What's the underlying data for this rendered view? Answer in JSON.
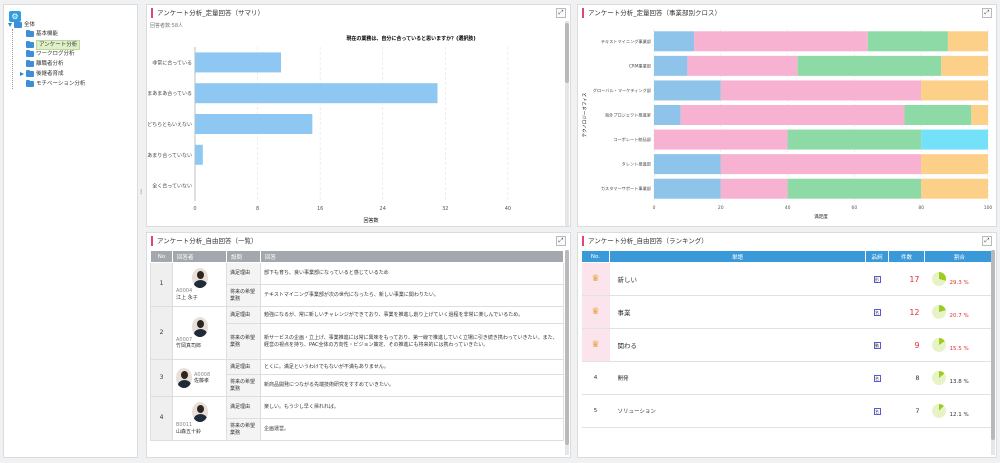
{
  "sidebar": {
    "top_button_icon": "gear-icon",
    "root": "全体",
    "items": [
      "基本機能",
      "アンケート分析",
      "ワークログ分析",
      "離職者分析",
      "後継者育成",
      "モチベーション分析"
    ],
    "selected": "アンケート分析"
  },
  "panel_summary": {
    "title": "アンケート分析_定量回答（サマリ）",
    "respondents": "回答者数:58人",
    "chart_title": "現在の業務は、自分に合っていると思いますか？(選択肢)",
    "xlabel": "回答数"
  },
  "panel_cross": {
    "title": "アンケート分析_定量回答（事業部別クロス）",
    "xlabel": "満足度",
    "ylabel": "テクノロジーオフィス"
  },
  "panel_free": {
    "title": "アンケート分析_自由回答（一覧）",
    "headers": [
      "No",
      "回答者",
      "設問",
      "回答"
    ],
    "rows": [
      {
        "no": "1",
        "id": "A0004",
        "name": "江上 永子",
        "q1": "満足理由",
        "a1": "部下も育ち、良い事業部になっていると感じているため",
        "q2": "将来の希望業務",
        "a2": "テキストマイニング事業部が次の世代になったら、新しい事業に関わりたい。"
      },
      {
        "no": "2",
        "id": "A0007",
        "name": "竹岡真司郎",
        "q1": "満足理由",
        "a1": "勉強になるが、常に新しいチャレンジができており、事業を推進し創り上げていく過程を非常に楽しんでいるため。",
        "q2": "将来の希望業務",
        "a2": "新サービスの企画・立上げ、事業推進には常に興味をもっており、第一線で推進していく立場に引き続き携わっていきたい。また、経営の視点を持ち、PAC全体の方向性・ビジョン策定、その推進にも将来的には携わっていきたい。"
      },
      {
        "no": "3",
        "id": "A0008",
        "name": "佐藤孝",
        "q1": "満足理由",
        "a1": "とくに。満足というわけでもないが不満もありません。",
        "q2": "将来の希望業務",
        "a2": "新商品開発につながる先端技術研究をすすめていきたい。"
      },
      {
        "no": "4",
        "id": "B0011",
        "name": "山森五十鈴",
        "q1": "満足理由",
        "a1": "楽しい。もう少し早く帰れれば。",
        "q2": "将来の希望業務",
        "a2": "企画運営。"
      }
    ]
  },
  "panel_rank": {
    "title": "アンケート分析_自由回答（ランキング）",
    "headers": [
      "No.",
      "単語",
      "品詞",
      "件数",
      "割合"
    ],
    "rows": [
      {
        "no": "1",
        "word": "新しい",
        "pos": "形",
        "count": "17",
        "pct": "29.3 %",
        "frac": 0.293,
        "top": true
      },
      {
        "no": "2",
        "word": "事業",
        "pos": "名",
        "count": "12",
        "pct": "20.7 %",
        "frac": 0.207,
        "top": true
      },
      {
        "no": "3",
        "word": "関わる",
        "pos": "動",
        "count": "9",
        "pct": "15.5 %",
        "frac": 0.155,
        "top": true
      },
      {
        "no": "4",
        "word": "開発",
        "pos": "名",
        "count": "8",
        "pct": "13.8 %",
        "frac": 0.138,
        "top": false
      },
      {
        "no": "5",
        "word": "ソリューション",
        "pos": "名",
        "count": "7",
        "pct": "12.1 %",
        "frac": 0.121,
        "top": false
      }
    ]
  },
  "colors": {
    "accent": "#e0457a",
    "header_blue": "#3a9ad9",
    "pie_fill": "#9ccc1f",
    "red_text": "#e03030"
  },
  "chart_data": [
    {
      "type": "bar",
      "orientation": "horizontal",
      "title": "現在の業務は、自分に合っていると思いますか？(選択肢)",
      "xlabel": "回答数",
      "categories": [
        "非常に合っている",
        "まあまあ合っている",
        "どちらともいえない",
        "あまり合っていない",
        "全く合っていない"
      ],
      "values": [
        11,
        31,
        15,
        1,
        0
      ],
      "xlim": [
        0,
        45
      ],
      "xticks": [
        0,
        8,
        16,
        24,
        32,
        40
      ],
      "grid": true
    },
    {
      "type": "bar",
      "orientation": "horizontal",
      "stacked": true,
      "xlabel": "満足度",
      "categories": [
        "テキストマイニング事業部",
        "CRM事業部",
        "グローバル・マーケティング部",
        "海外プロジェクト推進室",
        "コーポレート統括部",
        "タレント推進部",
        "カスタマーサポート事業部"
      ],
      "xlim": [
        0,
        100
      ],
      "xticks": [
        0,
        20,
        40,
        60,
        80,
        100
      ],
      "series": [
        {
          "color": "#8ec3ea",
          "values": [
            12,
            10,
            20,
            8,
            0,
            20,
            20
          ]
        },
        {
          "color": "#f7b2d2",
          "values": [
            52,
            33,
            60,
            67,
            40,
            60,
            20
          ]
        },
        {
          "color": "#8ddaa6",
          "values": [
            24,
            43,
            0,
            20,
            40,
            0,
            40
          ]
        },
        {
          "color": "#75e1f8",
          "values": [
            0,
            0,
            0,
            0,
            20,
            0,
            0
          ]
        },
        {
          "color": "#fdd089",
          "values": [
            12,
            14,
            20,
            5,
            0,
            20,
            20
          ]
        }
      ]
    }
  ]
}
